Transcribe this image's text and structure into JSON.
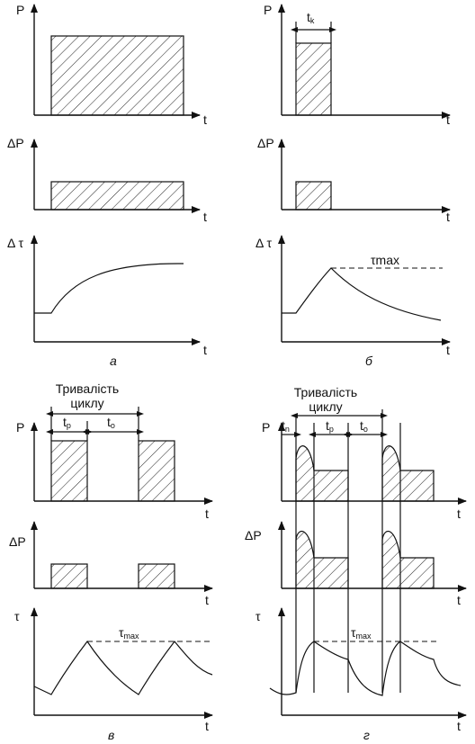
{
  "panels": [
    {
      "caption": "а",
      "charts": [
        {
          "y_label": "P",
          "x_label": "t"
        },
        {
          "y_label": "ΔP",
          "x_label": "t"
        },
        {
          "y_label": "Δ τ",
          "x_label": "t"
        }
      ]
    },
    {
      "caption": "б",
      "charts": [
        {
          "y_label": "P",
          "x_label": "t"
        },
        {
          "y_label": "ΔP",
          "x_label": "t"
        },
        {
          "y_label": "Δ τ",
          "x_label": "t"
        }
      ],
      "pulse_label": {
        "main": "t",
        "sub": "k"
      },
      "tau_label": {
        "main": "τ",
        "sub": "max"
      }
    },
    {
      "caption": "в",
      "cycle_title": [
        "Тривалість",
        "циклу"
      ],
      "charts": [
        {
          "y_label": "P",
          "x_label": "t"
        },
        {
          "y_label": "ΔP",
          "x_label": "t"
        },
        {
          "y_label": "τ",
          "x_label": "t"
        }
      ],
      "work_label": {
        "main": "t",
        "sub": "p"
      },
      "pause_label": {
        "main": "t",
        "sub": "o"
      },
      "tau_label": {
        "main": "τ",
        "sub": "max"
      }
    },
    {
      "caption": "г",
      "cycle_title": [
        "Тривалість",
        "циклу"
      ],
      "charts": [
        {
          "y_label": "P",
          "x_label": "t"
        },
        {
          "y_label": "ΔP",
          "x_label": "t"
        },
        {
          "y_label": "τ",
          "x_label": "t"
        }
      ],
      "start_label": {
        "main": "t",
        "sub": "n"
      },
      "work_label": {
        "main": "t",
        "sub": "p"
      },
      "pause_label": {
        "main": "t",
        "sub": "o"
      },
      "tau_label": {
        "main": "τ",
        "sub": "max"
      }
    }
  ]
}
